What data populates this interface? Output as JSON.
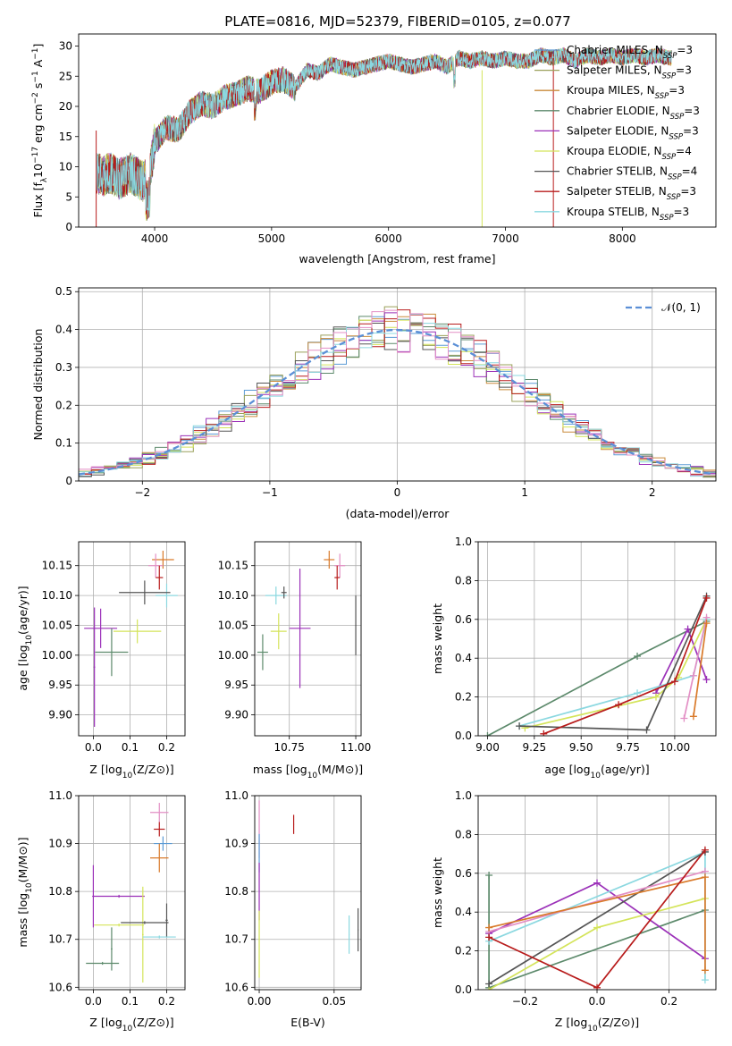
{
  "figure": {
    "title": "PLATE=0816, MJD=52379, FIBERID=0105, z=0.077"
  },
  "chart_data": [
    {
      "id": "spectrum",
      "type": "line",
      "xlabel": "wavelength [Angstrom, rest frame]",
      "ylabel_parts": {
        "a": "Flux [f",
        "b": "λ",
        "c": "10",
        "d": "−17",
        "e": " erg cm",
        "f": "−2",
        "g": " s",
        "h": "−1",
        "i": " A",
        "j": "−1",
        "k": "]"
      },
      "xlim": [
        3350,
        8800
      ],
      "ylim": [
        0,
        32
      ],
      "xticks": [
        4000,
        5000,
        6000,
        7000,
        8000
      ],
      "yticks": [
        0,
        5,
        10,
        15,
        20,
        25,
        30
      ],
      "grid": false,
      "legend_position": "upper right",
      "continuum": {
        "x": [
          3500,
          3560,
          3620,
          3700,
          3800,
          3900,
          3960,
          4000,
          4100,
          4200,
          4300,
          4400,
          4500,
          4600,
          4700,
          4800,
          4900,
          5000,
          5100,
          5200,
          5300,
          5400,
          5500,
          5600,
          5700,
          5800,
          5900,
          6000,
          6100,
          6200,
          6300,
          6400,
          6500,
          6600,
          6700,
          6800,
          6900,
          7000,
          7100,
          7200,
          7300,
          7400,
          7500,
          7600,
          7700,
          7800,
          7900,
          8000,
          8100,
          8200,
          8300,
          8400
        ],
        "y": [
          9,
          8.5,
          9,
          8,
          9,
          7.5,
          9,
          14,
          16.5,
          16,
          19,
          20.5,
          20,
          21.5,
          22,
          23,
          22.5,
          24,
          24.5,
          23,
          26,
          25.5,
          27,
          26.5,
          26,
          26.5,
          27,
          27.5,
          27,
          26.5,
          27,
          27.5,
          26.5,
          28,
          27.5,
          28,
          27.5,
          28,
          27.5,
          27.5,
          28.5,
          28,
          28.5,
          27.5,
          28.5,
          28,
          28.5,
          28,
          28.5,
          28,
          28.5,
          28
        ]
      },
      "series": [
        {
          "name": "Chabrier MILES, N",
          "sub": "SSP",
          "suffix": "=3",
          "color": "#5b9bd5"
        },
        {
          "name": "Salpeter MILES, N",
          "sub": "SSP",
          "suffix": "=3",
          "color": "#9aa05a"
        },
        {
          "name": "Kroupa MILES, N",
          "sub": "SSP",
          "suffix": "=3",
          "color": "#c98a3a"
        },
        {
          "name": "Chabrier ELODIE, N",
          "sub": "SSP",
          "suffix": "=3",
          "color": "#5d8a6c"
        },
        {
          "name": "Salpeter ELODIE, N",
          "sub": "SSP",
          "suffix": "=3",
          "color": "#9b30b8"
        },
        {
          "name": "Kroupa ELODIE, N",
          "sub": "SSP",
          "suffix": "=4",
          "color": "#d4e45a"
        },
        {
          "name": "Chabrier STELIB, N",
          "sub": "SSP",
          "suffix": "=4",
          "color": "#555555"
        },
        {
          "name": "Salpeter STELIB, N",
          "sub": "SSP",
          "suffix": "=3",
          "color": "#b81c1c"
        },
        {
          "name": "Kroupa STELIB, N",
          "sub": "SSP",
          "suffix": "=3",
          "color": "#8bd8e0"
        }
      ]
    },
    {
      "id": "residual_hist",
      "type": "histogram",
      "xlabel": "(data-model)/error",
      "ylabel": "Normed distribution",
      "xlim": [
        -2.5,
        2.5
      ],
      "ylim": [
        0,
        0.51
      ],
      "xticks": [
        -2,
        -1,
        0,
        1,
        2
      ],
      "xtick_labels": [
        "−2",
        "−1",
        "0",
        "1",
        "2"
      ],
      "yticks": [
        0.0,
        0.1,
        0.2,
        0.3,
        0.4,
        0.5
      ],
      "grid": true,
      "legend_position": "upper right",
      "reference": {
        "name": "𝒩(0, 1)",
        "color": "#5b8fd6",
        "style": "dashed",
        "mean": 0,
        "sigma": 1
      },
      "bin_width": 0.1,
      "series_colors": [
        "#5b9bd5",
        "#9aa05a",
        "#c98a3a",
        "#5d8a6c",
        "#9b30b8",
        "#d4e45a",
        "#555555",
        "#b81c1c",
        "#8bd8e0",
        "#e38fc5"
      ]
    },
    {
      "id": "age_vs_Z",
      "type": "errorbar",
      "xlabel_parts": {
        "a": "Z [log",
        "b": "10",
        "c": "(Z/Z",
        "d": "⊙",
        "e": ")]"
      },
      "ylabel_parts": {
        "a": "age  [log",
        "b": "10",
        "c": "(age/yr)]"
      },
      "xlim": [
        -0.04,
        0.25
      ],
      "ylim": [
        9.865,
        10.19
      ],
      "xticks": [
        0.0,
        0.1,
        0.2
      ],
      "xtick_labels": [
        "0.0",
        "0.1",
        "0.2"
      ],
      "yticks": [
        9.9,
        9.95,
        10.0,
        10.05,
        10.1,
        10.15
      ],
      "ytick_labels": [
        "9.90",
        "9.95",
        "10.00",
        "10.05",
        "10.10",
        "10.15"
      ],
      "grid": true,
      "points": [
        {
          "x": 0.19,
          "y": 10.16,
          "xerr": 0.03,
          "yerr": 0.015,
          "color": "#d97a2a"
        },
        {
          "x": 0.17,
          "y": 10.15,
          "xerr": 0.02,
          "yerr": 0.02,
          "color": "#e38fc5"
        },
        {
          "x": 0.18,
          "y": 10.13,
          "xerr": 0.01,
          "yerr": 0.02,
          "color": "#b81c1c"
        },
        {
          "x": 0.2,
          "y": 10.1,
          "xerr": 0.03,
          "yerr": 0.02,
          "color": "#8bd8e0"
        },
        {
          "x": 0.14,
          "y": 10.105,
          "xerr": 0.07,
          "yerr": 0.02,
          "color": "#555555"
        },
        {
          "x": 0.02,
          "y": 10.045,
          "xerr": 0.045,
          "yerr": 0.033,
          "color": "#9b30b8"
        },
        {
          "x": 0.12,
          "y": 10.04,
          "xerr": 0.065,
          "yerr": 0.02,
          "color": "#d4e45a"
        },
        {
          "x": 0.05,
          "y": 10.005,
          "xerr": 0.045,
          "yerr": 0.04,
          "color": "#5d8a6c"
        },
        {
          "x": 0.003,
          "y": 9.98,
          "xerr": 0.002,
          "yerr": 0.1,
          "color": "#9b30b8"
        }
      ]
    },
    {
      "id": "age_vs_mass",
      "type": "errorbar",
      "xlabel_parts": {
        "a": "mass [log",
        "b": "10",
        "c": "(M/M",
        "d": "⊙",
        "e": ")]"
      },
      "xlim": [
        10.62,
        11.02
      ],
      "ylim": [
        9.865,
        10.19
      ],
      "xticks": [
        10.75,
        11.0
      ],
      "xtick_labels": [
        "10.75",
        "11.00"
      ],
      "yticks": [
        9.9,
        9.95,
        10.0,
        10.05,
        10.1,
        10.15
      ],
      "ytick_labels": [
        "9.90",
        "9.95",
        "10.00",
        "10.05",
        "10.10",
        "10.15"
      ],
      "grid": true,
      "points": [
        {
          "x": 10.9,
          "y": 10.16,
          "xerr": 0.02,
          "yerr": 0.015,
          "color": "#d97a2a"
        },
        {
          "x": 10.94,
          "y": 10.15,
          "xerr": 0.02,
          "yerr": 0.02,
          "color": "#e38fc5"
        },
        {
          "x": 10.93,
          "y": 10.13,
          "xerr": 0.01,
          "yerr": 0.02,
          "color": "#b81c1c"
        },
        {
          "x": 10.7,
          "y": 10.1,
          "xerr": 0.04,
          "yerr": 0.015,
          "color": "#8bd8e0"
        },
        {
          "x": 10.73,
          "y": 10.105,
          "xerr": 0.01,
          "yerr": 0.01,
          "color": "#555555"
        },
        {
          "x": 10.79,
          "y": 10.045,
          "xerr": 0.04,
          "yerr": 0.1,
          "color": "#9b30b8"
        },
        {
          "x": 10.71,
          "y": 10.04,
          "xerr": 0.03,
          "yerr": 0.03,
          "color": "#d4e45a"
        },
        {
          "x": 10.65,
          "y": 10.005,
          "xerr": 0.02,
          "yerr": 0.03,
          "color": "#5d8a6c"
        },
        {
          "x": 11.0,
          "y": 10.05,
          "xerr": 0.002,
          "yerr": 0.05,
          "color": "#555555"
        }
      ]
    },
    {
      "id": "weight_vs_age",
      "type": "line",
      "xlabel_parts": {
        "a": "age  [log",
        "b": "10",
        "c": "(age/yr)]"
      },
      "ylabel": "mass weight",
      "xlim": [
        8.95,
        10.22
      ],
      "ylim": [
        0,
        1.0
      ],
      "xticks": [
        9.0,
        9.25,
        9.5,
        9.75,
        10.0
      ],
      "xtick_labels": [
        "9.00",
        "9.25",
        "9.50",
        "9.75",
        "10.00"
      ],
      "yticks": [
        0.0,
        0.2,
        0.4,
        0.6,
        0.8,
        1.0
      ],
      "ytick_labels": [
        "0.0",
        "0.2",
        "0.4",
        "0.6",
        "0.8",
        "1.0"
      ],
      "grid": true,
      "series": [
        {
          "color": "#5d8a6c",
          "x": [
            9.0,
            9.8,
            10.17
          ],
          "y": [
            0.0,
            0.41,
            0.59
          ]
        },
        {
          "color": "#9b30b8",
          "x": [
            9.9,
            10.07,
            10.17
          ],
          "y": [
            0.22,
            0.55,
            0.29
          ]
        },
        {
          "color": "#d4e45a",
          "x": [
            9.2,
            9.9,
            10.02,
            10.17
          ],
          "y": [
            0.04,
            0.2,
            0.3,
            0.6
          ]
        },
        {
          "color": "#8bd8e0",
          "x": [
            9.17,
            9.8,
            10.1,
            10.17
          ],
          "y": [
            0.05,
            0.22,
            0.31,
            0.6
          ]
        },
        {
          "color": "#555555",
          "x": [
            9.17,
            9.85,
            10.17
          ],
          "y": [
            0.05,
            0.03,
            0.72
          ]
        },
        {
          "color": "#e38fc5",
          "x": [
            10.05,
            10.1,
            10.17
          ],
          "y": [
            0.09,
            0.31,
            0.61
          ]
        },
        {
          "color": "#d97a2a",
          "x": [
            10.1,
            10.17
          ],
          "y": [
            0.1,
            0.58
          ]
        },
        {
          "color": "#b81c1c",
          "x": [
            9.3,
            9.7,
            10.0,
            10.17
          ],
          "y": [
            0.01,
            0.16,
            0.28,
            0.71
          ]
        }
      ]
    },
    {
      "id": "mass_vs_Z",
      "type": "errorbar",
      "xlabel_parts": {
        "a": "Z [log",
        "b": "10",
        "c": "(Z/Z",
        "d": "⊙",
        "e": ")]"
      },
      "ylabel_parts": {
        "a": "mass [log",
        "b": "10",
        "c": "(M/M",
        "d": "⊙",
        "e": ")]"
      },
      "xlim": [
        -0.04,
        0.25
      ],
      "ylim": [
        10.595,
        11.0
      ],
      "xticks": [
        0.0,
        0.1,
        0.2
      ],
      "xtick_labels": [
        "0.0",
        "0.1",
        "0.2"
      ],
      "yticks": [
        10.6,
        10.7,
        10.8,
        10.9,
        11.0
      ],
      "ytick_labels": [
        "10.6",
        "10.7",
        "10.8",
        "10.9",
        "11.0"
      ],
      "grid": true,
      "points": [
        {
          "x": 0.18,
          "y": 10.965,
          "xerr": 0.025,
          "yerr": 0.02,
          "color": "#e38fc5"
        },
        {
          "x": 0.18,
          "y": 10.93,
          "xerr": 0.015,
          "yerr": 0.015,
          "color": "#b81c1c"
        },
        {
          "x": 0.19,
          "y": 10.9,
          "xerr": 0.025,
          "yerr": 0.015,
          "color": "#5b9bd5"
        },
        {
          "x": 0.18,
          "y": 10.87,
          "xerr": 0.025,
          "yerr": 0.03,
          "color": "#d97a2a"
        },
        {
          "x": 0.0,
          "y": 10.79,
          "xerr": 0.003,
          "yerr": 0.065,
          "color": "#9b30b8"
        },
        {
          "x": 0.07,
          "y": 10.79,
          "xerr": 0.07,
          "yerr": 0.003,
          "color": "#9b30b8"
        },
        {
          "x": 0.07,
          "y": 10.73,
          "xerr": 0.068,
          "yerr": 0.003,
          "color": "#d4e45a"
        },
        {
          "x": 0.135,
          "y": 10.71,
          "xerr": 0.002,
          "yerr": 0.1,
          "color": "#d4e45a"
        },
        {
          "x": 0.14,
          "y": 10.735,
          "xerr": 0.065,
          "yerr": 0.003,
          "color": "#555555"
        },
        {
          "x": 0.2,
          "y": 10.74,
          "xerr": 0.003,
          "yerr": 0.035,
          "color": "#555555"
        },
        {
          "x": 0.18,
          "y": 10.705,
          "xerr": 0.045,
          "yerr": 0.003,
          "color": "#8bd8e0"
        },
        {
          "x": 0.05,
          "y": 10.68,
          "xerr": 0.002,
          "yerr": 0.045,
          "color": "#5d8a6c"
        },
        {
          "x": 0.025,
          "y": 10.65,
          "xerr": 0.045,
          "yerr": 0.003,
          "color": "#5d8a6c"
        }
      ]
    },
    {
      "id": "mass_vs_ebv",
      "type": "errorbar",
      "xlabel": "E(B-V)",
      "xlim": [
        -0.003,
        0.068
      ],
      "ylim": [
        10.595,
        11.0
      ],
      "xticks": [
        0.0,
        0.05
      ],
      "xtick_labels": [
        "0.00",
        "0.05"
      ],
      "yticks": [
        10.6,
        10.7,
        10.8,
        10.9,
        11.0
      ],
      "ytick_labels": [
        "10.6",
        "10.7",
        "10.8",
        "10.9",
        "11.0"
      ],
      "grid": true,
      "points": [
        {
          "x": 0.0,
          "y": 10.93,
          "xerr": 0.0003,
          "yerr": 0.06,
          "color": "#e38fc5"
        },
        {
          "x": 0.0,
          "y": 10.88,
          "xerr": 0.0003,
          "yerr": 0.04,
          "color": "#5b9bd5"
        },
        {
          "x": 0.0,
          "y": 10.8,
          "xerr": 0.0003,
          "yerr": 0.06,
          "color": "#9b30b8"
        },
        {
          "x": 0.0,
          "y": 10.69,
          "xerr": 0.0003,
          "yerr": 0.07,
          "color": "#d4e45a"
        },
        {
          "x": 0.023,
          "y": 10.94,
          "xerr": 0.0003,
          "yerr": 0.02,
          "color": "#b81c1c"
        },
        {
          "x": 0.06,
          "y": 10.71,
          "xerr": 0.0003,
          "yerr": 0.04,
          "color": "#8bd8e0"
        },
        {
          "x": 0.066,
          "y": 10.72,
          "xerr": 0.0003,
          "yerr": 0.045,
          "color": "#555555"
        }
      ]
    },
    {
      "id": "weight_vs_Z",
      "type": "line",
      "xlabel_parts": {
        "a": "Z [log",
        "b": "10",
        "c": "(Z/Z",
        "d": "⊙",
        "e": ")]"
      },
      "ylabel": "mass weight",
      "xlim": [
        -0.33,
        0.33
      ],
      "ylim": [
        0,
        1.0
      ],
      "xticks": [
        -0.2,
        0.0,
        0.2
      ],
      "xtick_labels": [
        "−0.2",
        "0.0",
        "0.2"
      ],
      "yticks": [
        0.0,
        0.2,
        0.4,
        0.6,
        0.8,
        1.0
      ],
      "ytick_labels": [
        "0.0",
        "0.2",
        "0.4",
        "0.6",
        "0.8",
        "1.0"
      ],
      "grid": true,
      "series": [
        {
          "color": "#5d8a6c",
          "x": [
            -0.3,
            -0.3,
            0.3
          ],
          "y": [
            0.59,
            0.01,
            0.41
          ]
        },
        {
          "color": "#9b30b8",
          "x": [
            -0.3,
            0.0,
            0.3
          ],
          "y": [
            0.29,
            0.55,
            0.16
          ]
        },
        {
          "color": "#d4e45a",
          "x": [
            -0.3,
            0.0,
            0.3
          ],
          "y": [
            0.0,
            0.32,
            0.47
          ]
        },
        {
          "color": "#8bd8e0",
          "x": [
            -0.3,
            0.3,
            0.3
          ],
          "y": [
            0.25,
            0.71,
            0.05
          ]
        },
        {
          "color": "#555555",
          "x": [
            -0.3,
            0.3
          ],
          "y": [
            0.03,
            0.71
          ]
        },
        {
          "color": "#e38fc5",
          "x": [
            -0.3,
            0.3
          ],
          "y": [
            0.3,
            0.61
          ]
        },
        {
          "color": "#d97a2a",
          "x": [
            -0.3,
            0.3,
            0.3
          ],
          "y": [
            0.32,
            0.58,
            0.1
          ]
        },
        {
          "color": "#b81c1c",
          "x": [
            -0.3,
            0.0,
            0.3
          ],
          "y": [
            0.27,
            0.01,
            0.72
          ]
        }
      ]
    }
  ]
}
